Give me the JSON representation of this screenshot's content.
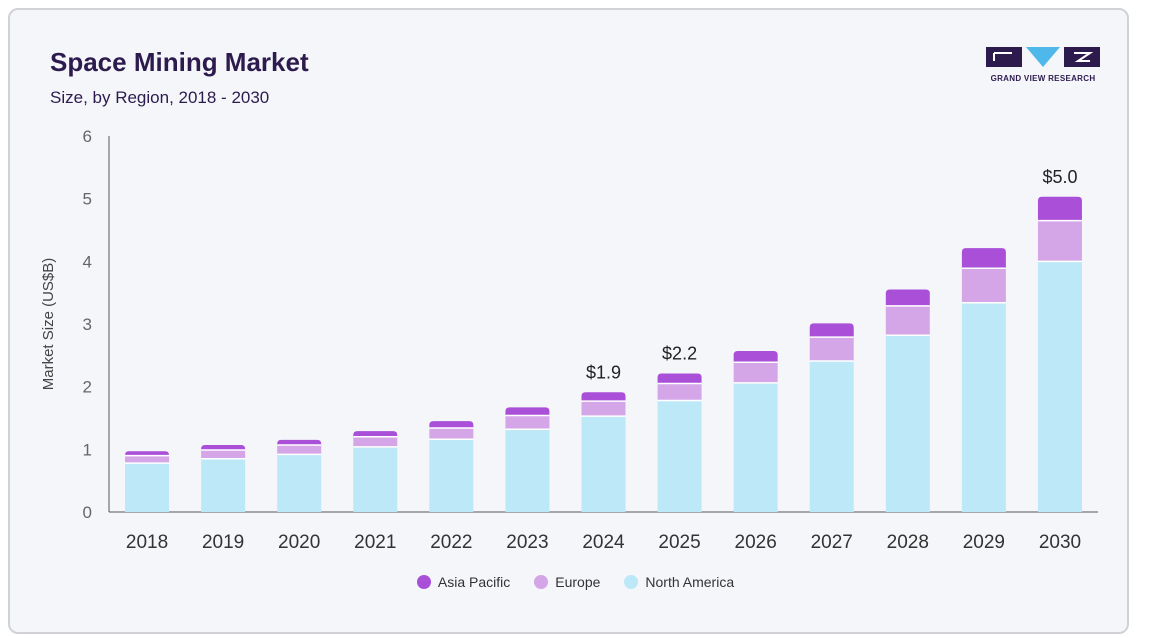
{
  "chart_data": {
    "type": "bar",
    "stacked": true,
    "title": "Space Mining Market",
    "subtitle": "Size, by Region, 2018 - 2030",
    "ylabel": "Market Size (US$B)",
    "xlabel": "",
    "ylim": [
      0,
      6
    ],
    "yticks": [
      "0",
      "1",
      "2",
      "3",
      "4",
      "5",
      "6"
    ],
    "categories": [
      "2018",
      "2019",
      "2020",
      "2021",
      "2022",
      "2023",
      "2024",
      "2025",
      "2026",
      "2027",
      "2028",
      "2029",
      "2030"
    ],
    "series": [
      {
        "name": "North America",
        "color": "#bde8f7",
        "values": [
          0.78,
          0.85,
          0.92,
          1.04,
          1.16,
          1.32,
          1.53,
          1.78,
          2.06,
          2.41,
          2.82,
          3.34,
          4.0
        ]
      },
      {
        "name": "Europe",
        "color": "#d4a6e8",
        "values": [
          0.12,
          0.14,
          0.15,
          0.16,
          0.18,
          0.22,
          0.24,
          0.27,
          0.33,
          0.38,
          0.47,
          0.55,
          0.65
        ]
      },
      {
        "name": "Asia Pacific",
        "color": "#a94fd8",
        "values": [
          0.07,
          0.08,
          0.08,
          0.09,
          0.11,
          0.13,
          0.14,
          0.16,
          0.18,
          0.22,
          0.26,
          0.32,
          0.38
        ]
      }
    ],
    "data_labels": [
      {
        "category": "2024",
        "text": "$1.9"
      },
      {
        "category": "2025",
        "text": "$2.2"
      },
      {
        "category": "2030",
        "text": "$5.0"
      }
    ],
    "legend": {
      "position": "bottom",
      "items": [
        {
          "label": "Asia Pacific",
          "color": "#a94fd8"
        },
        {
          "label": "Europe",
          "color": "#d4a6e8"
        },
        {
          "label": "North America",
          "color": "#bde8f7"
        }
      ]
    },
    "grid": false
  },
  "logo": {
    "text": "GRAND VIEW RESEARCH",
    "colors": [
      "#2d1b4e",
      "#4fb8ea"
    ]
  }
}
